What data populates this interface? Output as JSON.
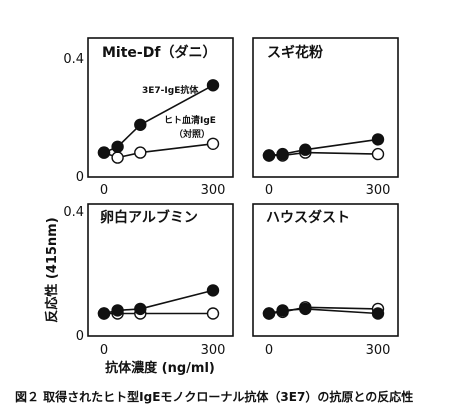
{
  "figure": {
    "caption": "図２ 取得されたヒト型IgEモノクローナル抗体（3E7）の抗原との反応性"
  },
  "chart_data": {
    "type": "line",
    "xlabel": "抗体濃度 (ng/ml)",
    "ylabel": "反応性 (415nm)",
    "x_ticks": [
      "0",
      "300"
    ],
    "y_ticks": [
      "0",
      "0.4"
    ],
    "xlim": [
      -20,
      320
    ],
    "ylim": [
      0,
      0.4
    ],
    "x": [
      0,
      37.5,
      100,
      300
    ],
    "legend_labels": {
      "antibody": "3E7-IgE抗体",
      "control_line1": "ヒト血清IgE",
      "control_line2": "（対照）"
    },
    "panels": [
      {
        "title": "Mite-Df（ダニ）",
        "series": [
          {
            "name": "3E7-IgE抗体",
            "marker": "filled",
            "values": [
              0.08,
              0.1,
              0.175,
              0.31
            ]
          },
          {
            "name": "ヒト血清IgE（対照）",
            "marker": "open",
            "values": [
              0.08,
              0.063,
              0.08,
              0.11
            ]
          }
        ]
      },
      {
        "title": "スギ花粉",
        "series": [
          {
            "name": "3E7-IgE抗体",
            "marker": "filled",
            "values": [
              0.07,
              0.075,
              0.09,
              0.125
            ]
          },
          {
            "name": "ヒト血清IgE（対照）",
            "marker": "open",
            "values": [
              0.07,
              0.07,
              0.08,
              0.075
            ]
          }
        ]
      },
      {
        "title": "卵白アルブミン",
        "series": [
          {
            "name": "3E7-IgE抗体",
            "marker": "filled",
            "values": [
              0.07,
              0.08,
              0.085,
              0.145
            ]
          },
          {
            "name": "ヒト血清IgE（対照）",
            "marker": "open",
            "values": [
              0.07,
              0.07,
              0.07,
              0.07
            ]
          }
        ]
      },
      {
        "title": "ハウスダスト",
        "series": [
          {
            "name": "3E7-IgE抗体",
            "marker": "filled",
            "values": [
              0.07,
              0.08,
              0.085,
              0.07
            ]
          },
          {
            "name": "ヒト血清IgE（対照）",
            "marker": "open",
            "values": [
              0.07,
              0.075,
              0.09,
              0.085
            ]
          }
        ]
      }
    ]
  }
}
